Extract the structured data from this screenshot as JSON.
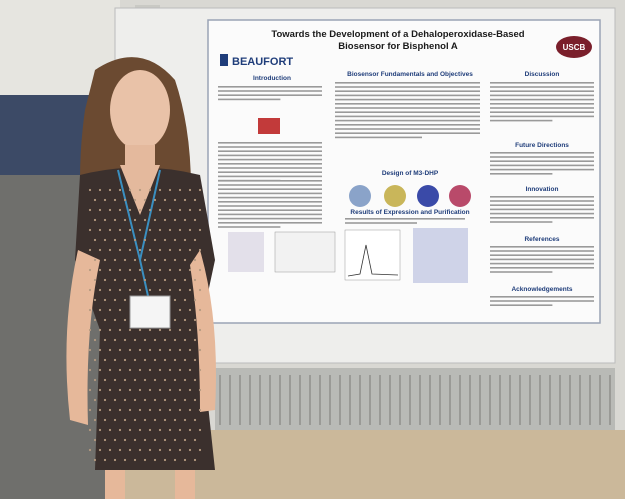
{
  "poster": {
    "title_lines": [
      "Towards the Development of a Dehaloperoxidase-Based",
      "Biosensor for Bisphenol A"
    ],
    "logo": "BEAUFORT",
    "badge": "USCB",
    "sections": [
      "Introduction",
      "Biosensor Fundamentals and Objectives",
      "Design of M3-DHP",
      "Results of Expression and Purification",
      "Discussion",
      "Future Directions",
      "Innovation",
      "References",
      "Acknowledgements"
    ]
  }
}
